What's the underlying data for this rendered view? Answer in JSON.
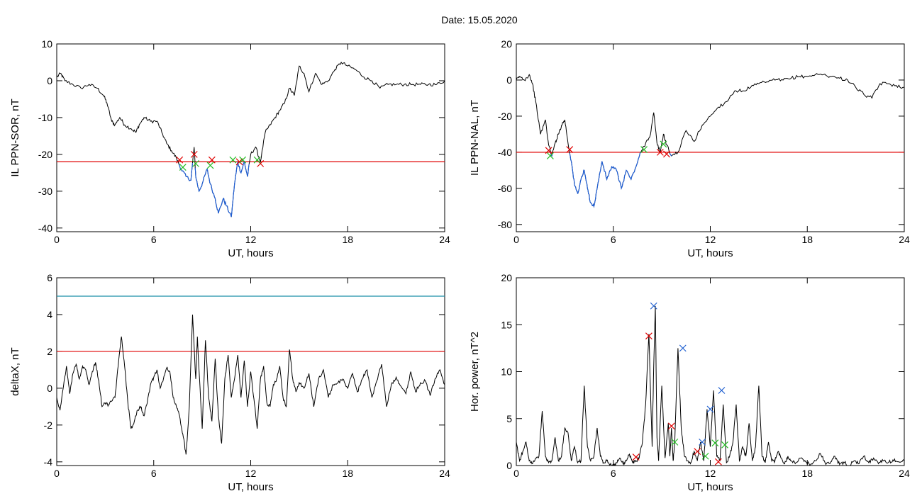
{
  "figure": {
    "title": "Date:  15.05.2020"
  },
  "colors": {
    "trace": "#000000",
    "threshold_red": "#e00000",
    "threshold_teal": "#1a8fa8",
    "highlight_blue": "#1f5fd6",
    "marker_red": "#e00000",
    "marker_green": "#22bb22",
    "marker_blue": "#2060d0"
  },
  "chart_data": [
    {
      "id": "tl",
      "type": "line",
      "xlabel": "UT, hours",
      "ylabel": "IL PPN-SOR, nT",
      "xlim": [
        0,
        24
      ],
      "ylim": [
        -41,
        10
      ],
      "xticks": [
        0,
        6,
        12,
        18,
        24
      ],
      "yticks": [
        -40,
        -30,
        -20,
        -10,
        0,
        10
      ],
      "threshold": [
        {
          "y": -22,
          "color": "#e00000"
        }
      ],
      "series": [
        {
          "color": "#000000",
          "highlight": {
            "below": -22,
            "xrange": [
              7.2,
              12.8
            ],
            "color": "#1f5fd6"
          },
          "x": [
            0,
            0.25,
            0.5,
            1,
            1.5,
            2,
            2.5,
            2.9,
            3.1,
            3.4,
            3.6,
            3.9,
            4.2,
            4.6,
            4.9,
            5.1,
            5.4,
            5.8,
            6.2,
            6.5,
            6.8,
            7.1,
            7.4,
            7.7,
            8,
            8.3,
            8.5,
            8.6,
            8.8,
            9,
            9.3,
            9.5,
            9.8,
            10,
            10.3,
            10.5,
            10.8,
            11,
            11.2,
            11.4,
            11.6,
            11.8,
            12,
            12.3,
            12.6,
            12.9,
            13.2,
            13.5,
            13.8,
            14.1,
            14.4,
            14.7,
            15,
            15.3,
            15.6,
            16,
            16.4,
            16.8,
            17.2,
            17.6,
            18,
            18.5,
            19,
            19.5,
            20,
            20.5,
            21,
            21.5,
            22,
            22.5,
            23,
            23.5,
            24
          ],
          "y": [
            1,
            2,
            0,
            -1,
            -2,
            -1,
            -2,
            -4,
            -6,
            -11,
            -12,
            -10,
            -12,
            -13,
            -14,
            -12,
            -10,
            -11,
            -11,
            -14,
            -17,
            -19,
            -21,
            -24,
            -26,
            -27,
            -18,
            -26,
            -30,
            -28,
            -24,
            -28,
            -32,
            -36,
            -32,
            -34,
            -37,
            -28,
            -22,
            -25,
            -22,
            -26,
            -20,
            -18,
            -22,
            -14,
            -12,
            -10,
            -8,
            -6,
            -2,
            -4,
            4,
            2,
            -3,
            2,
            -1,
            0,
            3,
            5,
            4,
            3,
            1,
            0,
            -2,
            -1,
            -1,
            -1,
            -1,
            -1,
            -1,
            -1,
            0
          ],
          "markers": [
            {
              "x": 7.6,
              "y": -21.5,
              "color": "#e00000"
            },
            {
              "x": 8.5,
              "y": -20,
              "color": "#e00000"
            },
            {
              "x": 9.6,
              "y": -21.5,
              "color": "#e00000"
            },
            {
              "x": 11.3,
              "y": -22,
              "color": "#e00000"
            },
            {
              "x": 12.6,
              "y": -22.5,
              "color": "#e00000"
            },
            {
              "x": 7.8,
              "y": -23.5,
              "color": "#22bb22"
            },
            {
              "x": 8.6,
              "y": -22.5,
              "color": "#22bb22"
            },
            {
              "x": 9.5,
              "y": -23,
              "color": "#22bb22"
            },
            {
              "x": 10.9,
              "y": -21.5,
              "color": "#22bb22"
            },
            {
              "x": 11.5,
              "y": -21.5,
              "color": "#22bb22"
            },
            {
              "x": 12.4,
              "y": -21.5,
              "color": "#22bb22"
            }
          ]
        }
      ]
    },
    {
      "id": "tr",
      "type": "line",
      "xlabel": "UT, hours",
      "ylabel": "IL PPN-NAL, nT",
      "xlim": [
        0,
        24
      ],
      "ylim": [
        -84,
        20
      ],
      "xticks": [
        0,
        6,
        12,
        18,
        24
      ],
      "yticks": [
        -80,
        -60,
        -40,
        -20,
        0,
        20
      ],
      "threshold": [
        {
          "y": -40,
          "color": "#e00000"
        }
      ],
      "series": [
        {
          "color": "#000000",
          "highlight": {
            "below": -40,
            "xrange": [
              1.8,
              9.6
            ],
            "color": "#1f5fd6"
          },
          "x": [
            0,
            0.2,
            0.5,
            0.8,
            1,
            1.2,
            1.5,
            1.8,
            2,
            2.2,
            2.4,
            2.6,
            2.8,
            3,
            3.2,
            3.4,
            3.6,
            3.8,
            4,
            4.2,
            4.4,
            4.6,
            4.8,
            5,
            5.3,
            5.6,
            5.9,
            6.2,
            6.5,
            6.8,
            7.1,
            7.4,
            7.7,
            8,
            8.3,
            8.5,
            8.7,
            8.9,
            9.1,
            9.3,
            9.6,
            10,
            10.5,
            11,
            11.5,
            12,
            12.5,
            13,
            13.5,
            14,
            14.5,
            15,
            15.5,
            16,
            16.5,
            17,
            17.5,
            18,
            18.5,
            19,
            19.5,
            20,
            20.5,
            21,
            21.5,
            22,
            22.5,
            23,
            23.5,
            24
          ],
          "y": [
            0,
            2,
            0,
            3,
            -2,
            -12,
            -30,
            -22,
            -36,
            -42,
            -35,
            -30,
            -25,
            -22,
            -35,
            -45,
            -58,
            -63,
            -55,
            -50,
            -60,
            -68,
            -70,
            -60,
            -45,
            -55,
            -48,
            -50,
            -60,
            -50,
            -55,
            -48,
            -40,
            -35,
            -30,
            -18,
            -35,
            -40,
            -30,
            -36,
            -42,
            -40,
            -28,
            -34,
            -25,
            -20,
            -15,
            -12,
            -6,
            -6,
            -4,
            -2,
            -1,
            0,
            0,
            1,
            2,
            2,
            3,
            3,
            2,
            1,
            0,
            -4,
            -8,
            -10,
            -2,
            -2,
            -3,
            -4
          ],
          "markers": [
            {
              "x": 2.0,
              "y": -39,
              "color": "#e00000"
            },
            {
              "x": 3.3,
              "y": -38.5,
              "color": "#e00000"
            },
            {
              "x": 8.9,
              "y": -40,
              "color": "#e00000"
            },
            {
              "x": 9.3,
              "y": -41,
              "color": "#e00000"
            },
            {
              "x": 2.1,
              "y": -42,
              "color": "#22bb22"
            },
            {
              "x": 7.9,
              "y": -38.5,
              "color": "#22bb22"
            },
            {
              "x": 9.1,
              "y": -35.5,
              "color": "#22bb22"
            }
          ]
        }
      ]
    },
    {
      "id": "bl",
      "type": "line",
      "xlabel": "UT, hours",
      "ylabel": "deltaX, nT",
      "xlim": [
        0,
        24
      ],
      "ylim": [
        -4.2,
        6
      ],
      "xticks": [
        0,
        6,
        12,
        18,
        24
      ],
      "yticks": [
        -4,
        -2,
        0,
        2,
        4,
        6
      ],
      "threshold": [
        {
          "y": 5,
          "color": "#1a8fa8"
        },
        {
          "y": 2,
          "color": "#e00000"
        }
      ],
      "series": [
        {
          "color": "#000000",
          "x": [
            0,
            0.2,
            0.4,
            0.6,
            0.8,
            1,
            1.2,
            1.4,
            1.6,
            1.8,
            2,
            2.2,
            2.4,
            2.6,
            2.8,
            3,
            3.2,
            3.4,
            3.6,
            3.8,
            4,
            4.2,
            4.4,
            4.6,
            4.8,
            5,
            5.2,
            5.4,
            5.6,
            5.8,
            6,
            6.2,
            6.4,
            6.6,
            6.8,
            7,
            7.2,
            7.4,
            7.6,
            7.8,
            8,
            8.2,
            8.4,
            8.6,
            8.7,
            8.8,
            9,
            9.2,
            9.4,
            9.6,
            9.8,
            10,
            10.2,
            10.4,
            10.6,
            10.8,
            11,
            11.2,
            11.4,
            11.6,
            11.8,
            12,
            12.2,
            12.4,
            12.6,
            12.8,
            13,
            13.2,
            13.4,
            13.6,
            13.8,
            14,
            14.2,
            14.4,
            14.6,
            14.8,
            15,
            15.3,
            15.6,
            15.9,
            16.2,
            16.5,
            16.8,
            17.1,
            17.4,
            17.7,
            18,
            18.3,
            18.6,
            18.9,
            19.2,
            19.5,
            19.8,
            20.1,
            20.4,
            20.7,
            21,
            21.3,
            21.6,
            21.9,
            22.2,
            22.5,
            22.8,
            23.1,
            23.4,
            23.7,
            24
          ],
          "y": [
            -0.5,
            -1.2,
            0,
            1.2,
            -0.3,
            0.8,
            1.3,
            0.5,
            1.2,
            1.0,
            0.2,
            0.9,
            1.4,
            0.4,
            -1.0,
            -0.8,
            -0.9,
            -0.7,
            -0.5,
            1.2,
            2.8,
            1.2,
            -0.8,
            -2.2,
            -1.8,
            -1.2,
            -1.0,
            -1.5,
            -0.8,
            0.2,
            0.6,
            1.0,
            0.0,
            0.5,
            1.1,
            0.9,
            -0.5,
            -1.0,
            -1.5,
            -2.5,
            -3.6,
            -1.0,
            4.0,
            0.5,
            2.8,
            1.0,
            -2.2,
            2.6,
            -0.5,
            -1.8,
            1.6,
            -1.5,
            -3.0,
            0.5,
            1.8,
            -0.5,
            0.5,
            1.8,
            -0.5,
            1.5,
            -1.0,
            0.9,
            -0.6,
            -2.2,
            0.5,
            1.2,
            -0.8,
            -1.0,
            0.2,
            0.5,
            1.2,
            -0.5,
            -1.0,
            2.1,
            0.5,
            -0.2,
            0.3,
            0.0,
            0.8,
            -1.0,
            0.5,
            1.0,
            -0.5,
            0.2,
            0.3,
            0.5,
            0.0,
            0.8,
            -0.2,
            0.5,
            1.0,
            -0.5,
            0.4,
            1.3,
            -1.0,
            0.2,
            0.6,
            0.1,
            -0.3,
            0.9,
            -0.2,
            0.3,
            0.4,
            -0.4,
            0.5,
            1.0,
            0.2
          ]
        }
      ]
    },
    {
      "id": "br",
      "type": "line",
      "xlabel": "UT, hours",
      "ylabel": "Hor. power, nT^2",
      "xlim": [
        0,
        24
      ],
      "ylim": [
        0,
        20
      ],
      "xticks": [
        0,
        6,
        12,
        18,
        24
      ],
      "yticks": [
        0,
        5,
        10,
        15,
        20
      ],
      "threshold": [],
      "series": [
        {
          "color": "#000000",
          "x": [
            0,
            0.2,
            0.4,
            0.6,
            0.8,
            1,
            1.2,
            1.4,
            1.6,
            1.8,
            2,
            2.2,
            2.4,
            2.6,
            2.8,
            3,
            3.2,
            3.4,
            3.6,
            3.8,
            4,
            4.2,
            4.4,
            4.6,
            4.8,
            5,
            5.2,
            5.4,
            5.6,
            5.8,
            6,
            6.2,
            6.4,
            6.6,
            6.8,
            7,
            7.2,
            7.4,
            7.6,
            7.8,
            8,
            8.2,
            8.4,
            8.5,
            8.6,
            8.7,
            8.8,
            9,
            9.2,
            9.4,
            9.5,
            9.6,
            9.7,
            9.8,
            10,
            10.2,
            10.4,
            10.6,
            10.8,
            11,
            11.2,
            11.4,
            11.6,
            11.8,
            12,
            12.2,
            12.4,
            12.6,
            12.8,
            13,
            13.2,
            13.4,
            13.6,
            13.8,
            14,
            14.2,
            14.4,
            14.6,
            14.8,
            15,
            15.2,
            15.4,
            15.6,
            15.8,
            16,
            16.2,
            16.4,
            16.6,
            16.8,
            17,
            17.3,
            17.6,
            17.9,
            18.2,
            18.5,
            18.8,
            19.1,
            19.4,
            19.7,
            20,
            20.3,
            20.6,
            20.9,
            21.2,
            21.5,
            21.8,
            22.1,
            22.4,
            22.7,
            23,
            23.3,
            23.6,
            24
          ],
          "y": [
            2.5,
            0.5,
            1.5,
            2.5,
            0.5,
            0.2,
            0.8,
            1.0,
            5.8,
            1.0,
            0.3,
            0.5,
            3.0,
            0.5,
            1.0,
            4.0,
            3.5,
            0.5,
            2.0,
            0.3,
            0.5,
            8.5,
            2.0,
            0.5,
            1.0,
            4.0,
            1.0,
            0.3,
            0.5,
            0.1,
            0.0,
            0.3,
            0.8,
            0.2,
            0.5,
            1.2,
            0.3,
            0.5,
            0.8,
            2.5,
            6.5,
            14.0,
            2.0,
            10.5,
            17.0,
            3.0,
            0.5,
            8.5,
            0.8,
            4.5,
            1.0,
            4.0,
            0.5,
            2.5,
            12.5,
            4.0,
            1.0,
            0.5,
            0.3,
            1.5,
            0.5,
            2.5,
            0.5,
            6.0,
            2.0,
            8.0,
            1.0,
            0.5,
            6.5,
            0.3,
            1.0,
            2.5,
            6.5,
            0.5,
            2.0,
            1.0,
            4.5,
            0.5,
            2.0,
            8.5,
            1.0,
            0.3,
            2.5,
            0.5,
            0.5,
            1.5,
            0.8,
            0.2,
            1.0,
            0.5,
            0.3,
            0.8,
            0.4,
            0.1,
            0.5,
            1.3,
            0.3,
            0.2,
            1.0,
            0.1,
            0.3,
            0.0,
            0.5,
            0.2,
            1.0,
            0.3,
            0.8,
            0.2,
            0.5,
            0.3,
            0.6,
            0.4,
            0.5
          ],
          "markers": [
            {
              "x": 8.5,
              "y": 17.0,
              "color": "#2060d0"
            },
            {
              "x": 10.3,
              "y": 12.5,
              "color": "#2060d0"
            },
            {
              "x": 12.0,
              "y": 6.0,
              "color": "#2060d0"
            },
            {
              "x": 12.7,
              "y": 8.0,
              "color": "#2060d0"
            },
            {
              "x": 11.5,
              "y": 2.5,
              "color": "#2060d0"
            },
            {
              "x": 8.2,
              "y": 13.8,
              "color": "#e00000"
            },
            {
              "x": 9.6,
              "y": 4.2,
              "color": "#e00000"
            },
            {
              "x": 7.4,
              "y": 0.9,
              "color": "#e00000"
            },
            {
              "x": 11.2,
              "y": 1.5,
              "color": "#e00000"
            },
            {
              "x": 12.5,
              "y": 0.4,
              "color": "#e00000"
            },
            {
              "x": 9.8,
              "y": 2.5,
              "color": "#22bb22"
            },
            {
              "x": 11.7,
              "y": 1.0,
              "color": "#22bb22"
            },
            {
              "x": 12.3,
              "y": 2.4,
              "color": "#22bb22"
            },
            {
              "x": 12.9,
              "y": 2.2,
              "color": "#22bb22"
            }
          ]
        }
      ]
    }
  ]
}
